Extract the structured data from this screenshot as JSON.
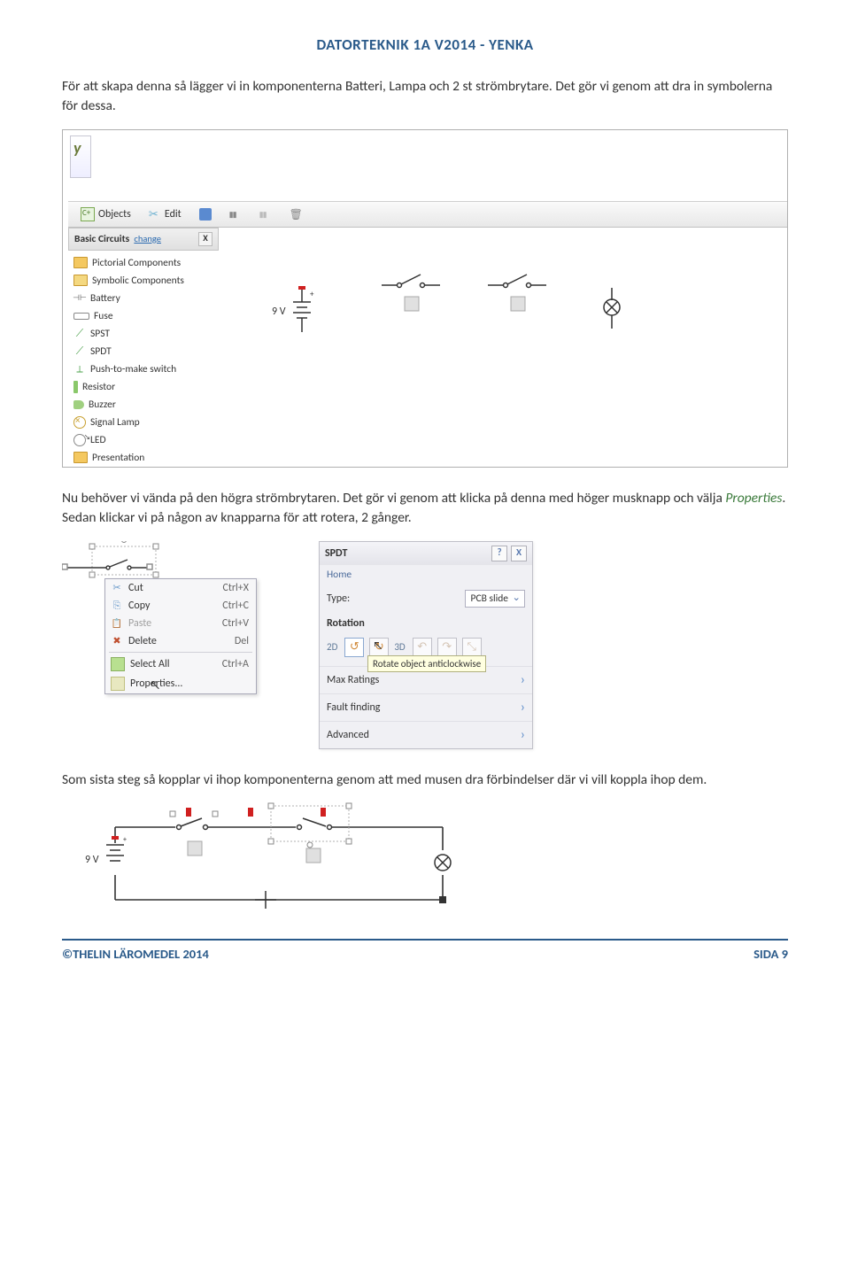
{
  "header": "DATORTEKNIK 1A V2014 - YENKA",
  "para1": "För att skapa denna så lägger vi in komponenterna Batteri, Lampa och 2 st strömbrytare. Det gör vi genom att dra in symbolerna för dessa.",
  "para2a": "Nu behöver vi vända på den högra strömbrytaren. Det gör vi genom att klicka på denna med höger musknapp och välja ",
  "para2b": "Properties",
  "para2c": ". Sedan klickar vi på någon av knapparna för att rotera, 2 gånger.",
  "para3": "Som sista steg så kopplar vi ihop komponenterna genom att med musen dra förbindelser där vi vill koppla ihop dem.",
  "footer_left": "©THELIN LÄROMEDEL 2014",
  "footer_right": "SIDA 9",
  "shot1": {
    "toolbar": {
      "objects": "Objects",
      "edit": "Edit"
    },
    "panel_title": "Basic Circuits",
    "panel_change": "change",
    "tree": [
      {
        "icon": "fld",
        "label": "Pictorial Components"
      },
      {
        "icon": "fld open",
        "label": "Symbolic Components"
      },
      {
        "icon": "ic-batt",
        "label": "Battery"
      },
      {
        "icon": "ic-fuse",
        "label": "Fuse"
      },
      {
        "icon": "ic-spst",
        "label": "SPST"
      },
      {
        "icon": "ic-spdt",
        "label": "SPDT"
      },
      {
        "icon": "ic-push",
        "label": "Push-to-make switch"
      },
      {
        "icon": "ic-res",
        "label": "Resistor"
      },
      {
        "icon": "ic-buz",
        "label": "Buzzer"
      },
      {
        "icon": "ic-lamp",
        "label": "Signal Lamp"
      },
      {
        "icon": "ic-led",
        "label": "LED"
      },
      {
        "icon": "fld",
        "label": "Presentation"
      }
    ],
    "battery_label": "9 V"
  },
  "ctx": {
    "items": [
      {
        "ico": "mico-cut",
        "label": "Cut",
        "sc": "Ctrl+X"
      },
      {
        "ico": "mico-copy",
        "label": "Copy",
        "sc": "Ctrl+C"
      },
      {
        "ico": "mico-paste",
        "label": "Paste",
        "sc": "Ctrl+V",
        "dis": true
      },
      {
        "ico": "mico-del",
        "label": "Delete",
        "sc": "Del"
      }
    ],
    "items2": [
      {
        "ico": "mico-sel",
        "label": "Select All",
        "sc": "Ctrl+A"
      },
      {
        "ico": "mico-prop",
        "label": "Properties...",
        "sc": ""
      }
    ]
  },
  "spdt": {
    "title": "SPDT",
    "home": "Home",
    "type_label": "Type:",
    "type_value": "PCB slide",
    "rotation": "Rotation",
    "l2d": "2D",
    "l3d": "3D",
    "tooltip": "Rotate object anticlockwise",
    "max": "Max Ratings",
    "fault": "Fault finding",
    "adv": "Advanced"
  },
  "shot3": {
    "battery_label": "9 V"
  }
}
